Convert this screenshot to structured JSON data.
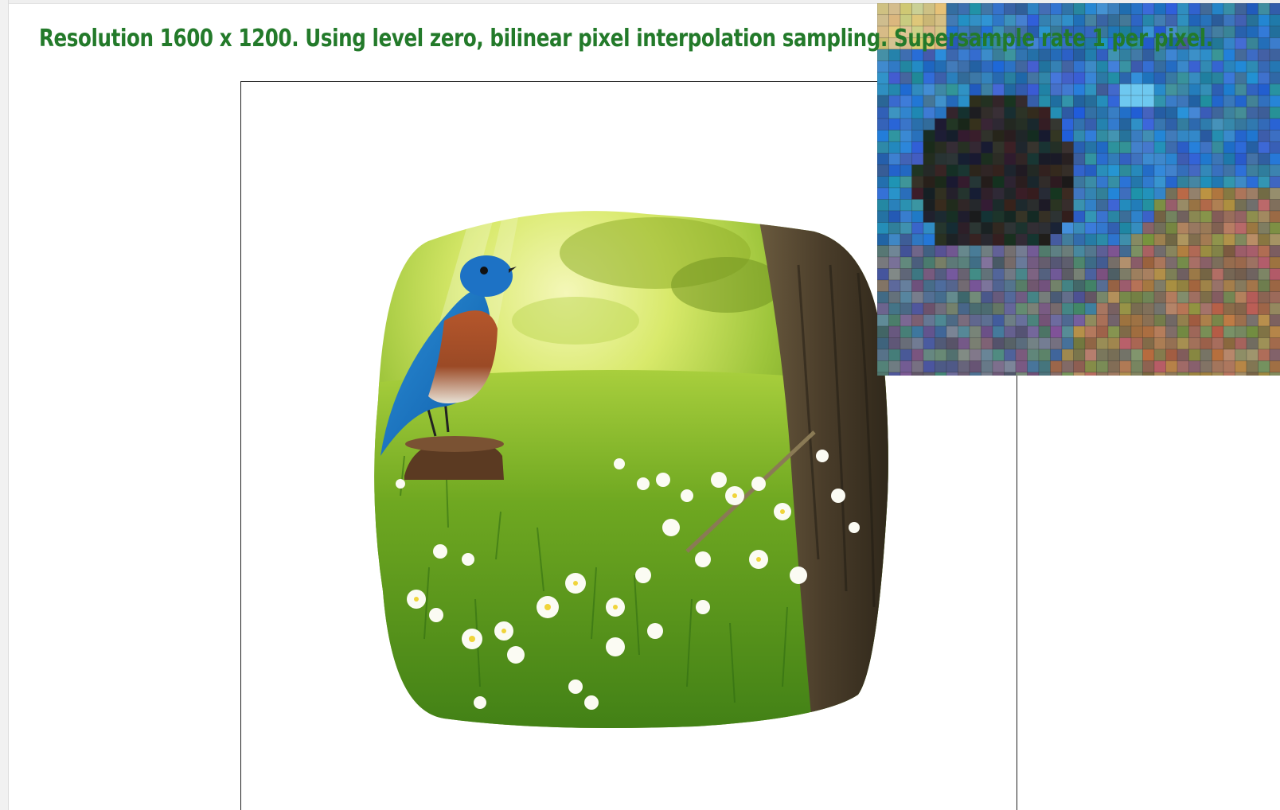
{
  "status": {
    "message": "Resolution 1600 x 1200. Using level zero, bilinear pixel interpolation sampling. Supersample rate 1 per pixel."
  },
  "colors": {
    "status_text": "#237a2a",
    "frame_border": "#222222",
    "background": "#ffffff"
  },
  "rendered_image": {
    "subject": "bluebird on tree stump in meadow with white flowers",
    "icon": "bird-photo-icon"
  },
  "zoom_view": {
    "pixel_grid": true,
    "icon": "zoom-magnifier-icon"
  }
}
